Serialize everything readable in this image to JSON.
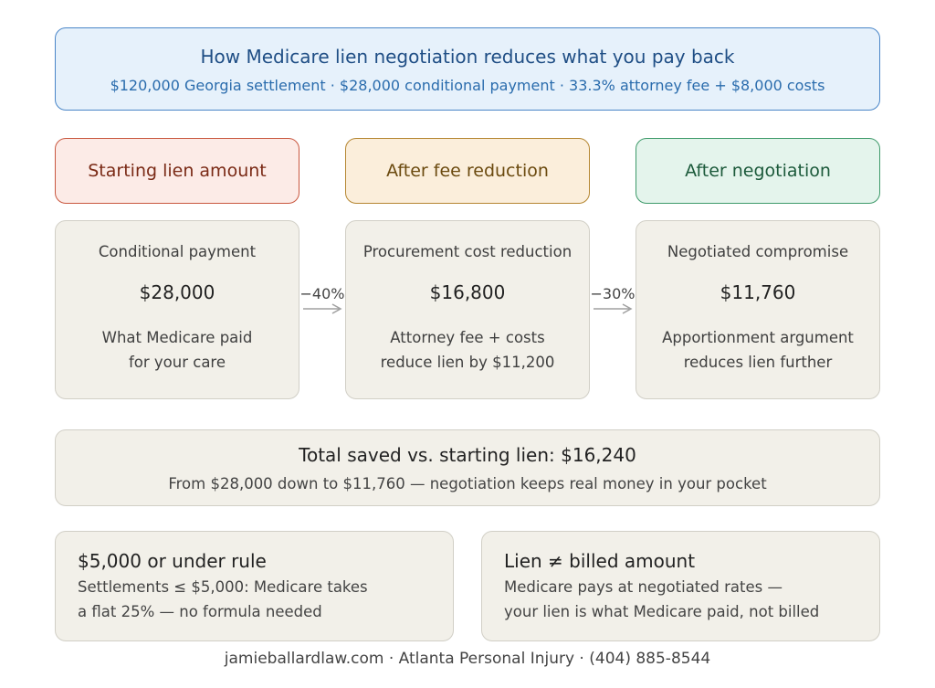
{
  "header": {
    "title": "How Medicare lien negotiation reduces what you pay back",
    "subtitle": "$120,000 Georgia settlement · $28,000 conditional payment · 33.3% attorney fee + $8,000 costs"
  },
  "stages": [
    {
      "label": "Starting lien amount",
      "color": "#c9573f"
    },
    {
      "label": "After fee reduction",
      "color": "#b58631"
    },
    {
      "label": "After negotiation",
      "color": "#3e9a6a"
    }
  ],
  "cards": [
    {
      "label": "Conditional payment",
      "amount": "$28,000",
      "desc_line1": "What Medicare paid",
      "desc_line2": "for your care"
    },
    {
      "label": "Procurement cost reduction",
      "amount": "$16,800",
      "desc_line1": "Attorney fee + costs",
      "desc_line2": "reduce lien by $11,200"
    },
    {
      "label": "Negotiated compromise",
      "amount": "$11,760",
      "desc_line1": "Apportionment argument",
      "desc_line2": "reduces lien further"
    }
  ],
  "arrows": [
    {
      "label": "−40%"
    },
    {
      "label": "−30%"
    }
  ],
  "total": {
    "title": "Total saved vs. starting lien: $16,240",
    "subtitle": "From $28,000 down to $11,760 — negotiation keeps real money in your pocket"
  },
  "notes": [
    {
      "title": "$5,000 or under rule",
      "line1": "Settlements ≤ $5,000: Medicare takes",
      "line2": "a flat 25% — no formula needed"
    },
    {
      "title": "Lien ≠ billed amount",
      "line1": "Medicare pays at negotiated rates —",
      "line2": "your lien is what Medicare paid, not billed"
    }
  ],
  "footer": "jamieballardlaw.com · Atlanta Personal Injury · (404) 885-8544"
}
